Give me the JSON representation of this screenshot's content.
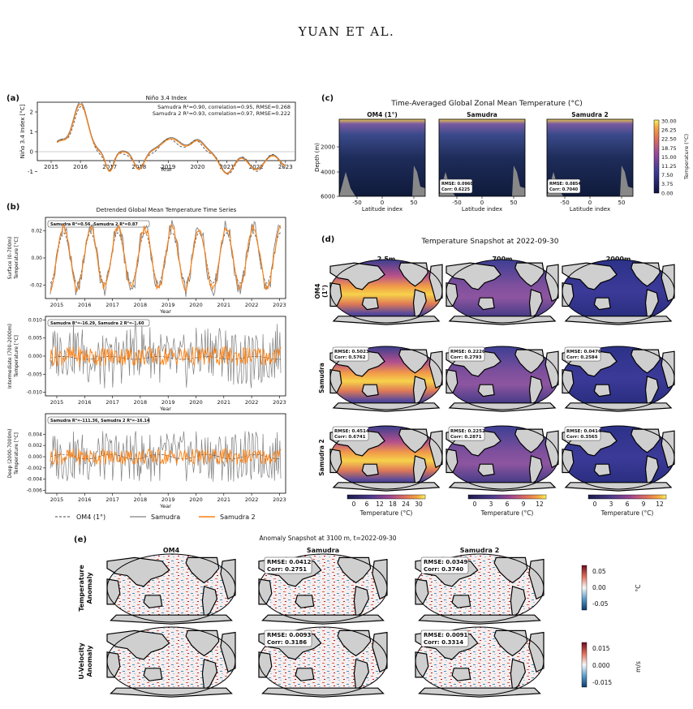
{
  "page_header": "YUAN ET AL.",
  "colors": {
    "om4": "#444444",
    "samudra": "#808080",
    "samudra2": "#ff7f0e"
  },
  "panel_a": {
    "label": "(a)",
    "title": "Niño 3.4 Index",
    "stats1": "Samudra R²=0.90, correlation=0.95, RMSE=0.268",
    "stats2": "Samudra 2 R²=0.93, correlation=0.97, RMSE=0.222",
    "ylabel": "Niño 3.4 Index [°C]",
    "xlabel": "Year",
    "xticks": [
      "2015",
      "2016",
      "2017",
      "2018",
      "2019",
      "2020",
      "2021",
      "2022",
      "2023"
    ],
    "yticks": [
      "2",
      "1",
      "0",
      "-1"
    ]
  },
  "panel_b": {
    "label": "(b)",
    "title": "Detrended Global Mean Temperature Time Series",
    "xticks": [
      "2015",
      "2016",
      "2017",
      "2018",
      "2019",
      "2020",
      "2021",
      "2022",
      "2023"
    ],
    "xlabel": "Year",
    "sub1": {
      "stats": "Samudra R²=0.56,  Samudra 2 R²=0.87",
      "ylabel1": "Surface (0-700m)",
      "ylabel2": "Temperature [°C]",
      "yticks": [
        "0.02",
        "0.00",
        "-0.02"
      ]
    },
    "sub2": {
      "stats": "Samudra R²=-16.29,  Samudra 2 R²=-1.60",
      "ylabel1": "Intermediate (700-2000m)",
      "ylabel2": "Temperature [°C]",
      "yticks": [
        "0.010",
        "0.005",
        "0.000",
        "-0.005",
        "-0.010"
      ]
    },
    "sub3": {
      "stats": "Samudra R²=-111.36,  Samudra 2 R²=-16.14",
      "ylabel1": "Deep (2000-7000m)",
      "ylabel2": "Temperature [°C]",
      "yticks": [
        "0.004",
        "0.002",
        "0.000",
        "-0.002",
        "-0.004",
        "-0.006"
      ]
    }
  },
  "legend": {
    "om4": "OM4 (1°)",
    "samudra": "Samudra",
    "samudra2": "Samudra 2"
  },
  "panel_c": {
    "label": "(c)",
    "title": "Time-Averaged Global Zonal Mean Temperature (°C)",
    "ylabel": "Depth (m)",
    "xlabel": "Latitude index",
    "yticks": [
      "2000",
      "4000",
      "6000"
    ],
    "xticks": [
      "-50",
      "0",
      "50"
    ],
    "panels": [
      {
        "title": "OM4 (1°)",
        "rmse": "",
        "corr": ""
      },
      {
        "title": "Samudra",
        "rmse": "RMSE: 0.0960",
        "corr": "Corr: 0.6225"
      },
      {
        "title": "Samudra 2",
        "rmse": "RMSE: 0.0854",
        "corr": "Corr: 0.7040"
      }
    ],
    "cbar_ticks": [
      "30.00",
      "26.25",
      "22.50",
      "18.75",
      "15.00",
      "11.25",
      "7.50",
      "3.75",
      "0.00"
    ],
    "cbar_label": "Temperature (°C)"
  },
  "panel_d": {
    "label": "(d)",
    "title": "Temperature Snapshot at 2022-09-30",
    "cols": [
      "2.5m",
      "700m",
      "2000m"
    ],
    "rows": [
      "OM4\n(1°)",
      "Samudra",
      "Samudra 2"
    ],
    "row_labels": {
      "r0a": "OM4",
      "r0b": "(1°)",
      "r1": "Samudra",
      "r2": "Samudra 2"
    },
    "stats": [
      [
        {
          "rmse": "",
          "corr": ""
        },
        {
          "rmse": "",
          "corr": ""
        },
        {
          "rmse": "",
          "corr": ""
        }
      ],
      [
        {
          "rmse": "RMSE: 0.5023",
          "corr": "Corr: 0.5762"
        },
        {
          "rmse": "RMSE: 0.2226",
          "corr": "Corr: 0.2793"
        },
        {
          "rmse": "RMSE: 0.0476",
          "corr": "Corr: 0.2584"
        }
      ],
      [
        {
          "rmse": "RMSE: 0.4514",
          "corr": "Corr: 0.6741"
        },
        {
          "rmse": "RMSE: 0.2252",
          "corr": "Corr: 0.2871"
        },
        {
          "rmse": "RMSE: 0.0414",
          "corr": "Corr: 0.3565"
        }
      ]
    ],
    "cbars": [
      {
        "ticks": [
          "0",
          "6",
          "12",
          "18",
          "24",
          "30"
        ],
        "label": "Temperature (°C)"
      },
      {
        "ticks": [
          "0",
          "3",
          "6",
          "9",
          "12"
        ],
        "label": "Temperature (°C)"
      },
      {
        "ticks": [
          "0",
          "3",
          "6",
          "9",
          "12"
        ],
        "label": "Temperature (°C)"
      }
    ]
  },
  "panel_e": {
    "label": "(e)",
    "title": "Anomaly Snapshot at 3100 m, t=2022-09-30",
    "cols": [
      "OM4",
      "Samudra",
      "Samudra 2"
    ],
    "row_labels": {
      "r0a": "Temperature",
      "r0b": "Anomaly",
      "r1a": "U-Velocity",
      "r1b": "Anomaly"
    },
    "stats": [
      [
        {
          "rmse": "",
          "corr": ""
        },
        {
          "rmse": "RMSE: 0.0412",
          "corr": "Corr: 0.2751"
        },
        {
          "rmse": "RMSE: 0.0349",
          "corr": "Corr: 0.3740"
        }
      ],
      [
        {
          "rmse": "",
          "corr": ""
        },
        {
          "rmse": "RMSE: 0.0093",
          "corr": "Corr: 0.3186"
        },
        {
          "rmse": "RMSE: 0.0091",
          "corr": "Corr: 0.3314"
        }
      ]
    ],
    "cbar1": {
      "ticks": [
        "0.05",
        "0.00",
        "-0.05"
      ],
      "unit": "°C"
    },
    "cbar2": {
      "ticks": [
        "0.015",
        "0.000",
        "-0.015"
      ],
      "unit": "m/s"
    }
  }
}
